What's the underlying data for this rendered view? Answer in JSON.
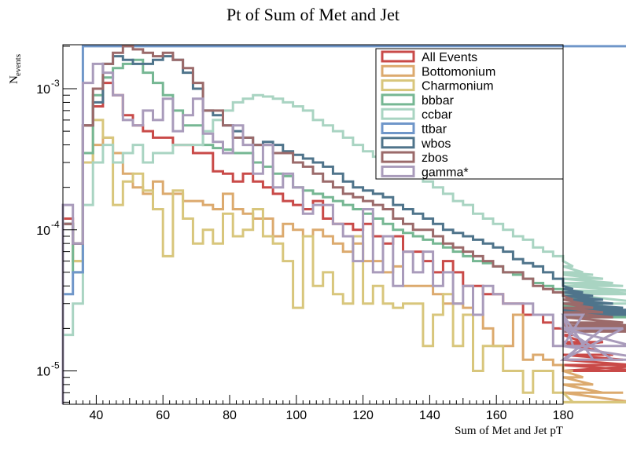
{
  "chart_data": {
    "type": "line",
    "title": "Pt of Sum of Met and Jet",
    "xlabel": "Sum of Met and Jet pT",
    "ylabel_main": "N",
    "ylabel_sub": "events",
    "xlim": [
      30,
      180
    ],
    "ylim": [
      5.8e-06,
      0.00205
    ],
    "yscale": "log",
    "x_ticks": [
      40,
      60,
      80,
      100,
      120,
      140,
      160,
      180
    ],
    "y_ticks": [
      {
        "value": 0.001,
        "base": "10",
        "exp": "-3"
      },
      {
        "value": 0.0001,
        "base": "10",
        "exp": "-4"
      },
      {
        "value": 1e-05,
        "base": "10",
        "exp": "-5"
      }
    ],
    "bin_edges_start": 30,
    "bin_width": 3,
    "grid": false,
    "legend_position": "top-right",
    "series": [
      {
        "name": "All Events",
        "color": "#c94a48",
        "values": [
          0.00012,
          8e-05,
          0.00055,
          0.00075,
          0.0011,
          0.0009,
          0.00065,
          0.00055,
          0.0005,
          0.00045,
          0.00045,
          0.0004,
          0.0004,
          0.00035,
          0.00035,
          0.00026,
          0.00025,
          0.00022,
          0.00025,
          0.00022,
          0.0002,
          0.00018,
          0.00016,
          0.00015,
          0.00014,
          0.00016,
          0.00012,
          0.00011,
          0.00011,
          0.0001,
          0.00011,
          9e-05,
          8e-05,
          9e-05,
          7e-05,
          7e-05,
          6e-05,
          5e-05,
          6e-05,
          5e-05,
          4e-05,
          4e-05,
          3.5e-05,
          3.5e-05,
          3e-05,
          3e-05,
          2.5e-05,
          2.5e-05,
          2.2e-05,
          2e-05,
          2.2e-05,
          1.8e-05,
          1.6e-05,
          1.5e-05,
          1.6e-05,
          1.3e-05,
          1.2e-05,
          1.1e-05,
          1e-05,
          1.1e-05
        ]
      },
      {
        "name": "Bottomonium",
        "color": "#dcaa6e",
        "values": [
          0.00011,
          6e-05,
          0.0003,
          0.0004,
          0.00045,
          0.00035,
          0.00025,
          0.0002,
          0.00018,
          0.00022,
          0.00018,
          0.00018,
          0.00016,
          0.00016,
          0.00015,
          0.00014,
          0.00018,
          0.00014,
          0.00013,
          0.00012,
          0.00012,
          9e-05,
          0.00011,
          0.0001,
          9e-05,
          0.0001,
          9e-05,
          8e-05,
          7e-05,
          8e-05,
          6e-05,
          6e-05,
          5e-05,
          5.5e-05,
          4e-05,
          4e-05,
          4e-05,
          3.5e-05,
          3e-05,
          3e-05,
          2.8e-05,
          2.5e-05,
          2e-05,
          1.5e-05,
          1.5e-05,
          2.5e-05,
          1.2e-05,
          1.3e-05,
          1.2e-05,
          1.1e-05,
          1e-05,
          1e-05,
          9e-06,
          8e-06,
          7e-06,
          7e-06,
          7e-06,
          6e-06,
          6e-06,
          6e-06
        ]
      },
      {
        "name": "Charmonium",
        "color": "#d8c67c",
        "values": [
          0.00011,
          6e-05,
          0.0003,
          0.0006,
          0.00045,
          0.00015,
          0.00022,
          0.00025,
          0.00019,
          0.00014,
          6.5e-05,
          0.00019,
          0.00012,
          8e-05,
          0.0001,
          8e-05,
          0.00013,
          9e-05,
          0.0001,
          0.00014,
          9e-05,
          8e-05,
          6e-05,
          2.8e-05,
          9e-05,
          4e-05,
          5e-05,
          3.5e-05,
          3e-05,
          9e-05,
          3e-05,
          4e-05,
          3e-05,
          2.8e-05,
          3e-05,
          3e-05,
          1.5e-05,
          2.5e-05,
          3.5e-05,
          1.5e-05,
          2.5e-05,
          1e-05,
          1.5e-05,
          1.5e-05,
          1e-05,
          1e-05,
          7e-06,
          1e-05,
          1e-05,
          7e-06,
          7e-06,
          6e-06,
          6e-06,
          6e-06,
          6e-06,
          6e-06,
          6e-06,
          6e-06,
          6e-06,
          6e-06
        ]
      },
      {
        "name": "bbbar",
        "color": "#76b793",
        "values": [
          0.00011,
          5e-05,
          0.00035,
          0.0009,
          0.0012,
          0.0014,
          0.0015,
          0.0016,
          0.0013,
          0.0011,
          0.0009,
          0.0007,
          0.00055,
          0.00055,
          0.0004,
          0.00038,
          0.00037,
          0.00035,
          0.00035,
          0.0003,
          0.00028,
          0.00025,
          0.00024,
          0.0002,
          0.00019,
          0.00018,
          0.00017,
          0.00016,
          0.00015,
          0.00014,
          0.00013,
          0.00012,
          0.00011,
          0.0001,
          9.5e-05,
          9e-05,
          8.5e-05,
          8e-05,
          7.5e-05,
          7e-05,
          6.5e-05,
          6e-05,
          5.8e-05,
          5.5e-05,
          5e-05,
          4.8e-05,
          4.5e-05,
          4.2e-05,
          4e-05,
          3.8e-05,
          3.6e-05,
          3.4e-05,
          3.2e-05,
          3e-05,
          2.9e-05,
          2.8e-05,
          2.7e-05,
          2.6e-05,
          2.5e-05,
          2.4e-05
        ]
      },
      {
        "name": "ccbar",
        "color": "#a9d4c2",
        "values": [
          1.8e-05,
          3e-05,
          0.00015,
          0.0003,
          0.0004,
          0.0003,
          0.00035,
          0.0004,
          0.0003,
          0.00035,
          0.00035,
          0.0004,
          0.0004,
          0.0004,
          0.0005,
          0.0006,
          0.0007,
          0.0008,
          0.00085,
          0.0009,
          0.00088,
          0.00085,
          0.0008,
          0.00075,
          0.0007,
          0.0006,
          0.00055,
          0.0005,
          0.00045,
          0.0004,
          0.00036,
          0.00033,
          0.0003,
          0.00028,
          0.00026,
          0.00024,
          0.00022,
          0.0002,
          0.00018,
          0.00016,
          0.00015,
          0.00013,
          0.00012,
          0.00011,
          0.0001,
          9e-05,
          8.5e-05,
          7.5e-05,
          7e-05,
          6.5e-05,
          6e-05,
          5.5e-05,
          5e-05,
          4.8e-05,
          4.5e-05,
          4.2e-05,
          4e-05,
          3.7e-05,
          3.5e-05,
          3e-05
        ]
      },
      {
        "name": "ttbar",
        "color": "#6f96c9",
        "values": [
          3.5e-05,
          5e-05,
          0.002,
          0.002,
          0.002,
          0.002,
          0.002,
          0.002,
          0.002,
          0.002,
          0.002,
          0.002,
          0.002,
          0.002,
          0.002,
          0.002,
          0.002,
          0.002,
          0.002,
          0.002,
          0.002,
          0.002,
          0.002,
          0.002,
          0.002,
          0.002,
          0.002,
          0.002,
          0.002,
          0.002,
          0.002,
          0.002,
          0.002,
          0.002,
          0.002,
          0.002,
          0.002,
          0.002,
          0.002,
          0.002,
          0.002,
          0.002,
          0.002,
          0.002,
          0.002,
          0.002,
          0.002,
          0.002,
          0.002,
          0.002,
          0.002,
          0.002,
          0.002,
          0.002,
          0.002,
          0.002,
          0.002,
          0.002,
          0.002,
          0.002
        ]
      },
      {
        "name": "wbos",
        "color": "#4f748b",
        "values": [
          0.00011,
          8e-05,
          0.00055,
          0.0008,
          0.0015,
          0.0017,
          0.0016,
          0.0015,
          0.0015,
          0.0016,
          0.0017,
          0.0016,
          0.0013,
          0.001,
          0.0007,
          0.00065,
          0.00055,
          0.0005,
          0.00045,
          0.0004,
          0.00042,
          0.0004,
          0.00036,
          0.00034,
          0.00032,
          0.0003,
          0.00028,
          0.00025,
          0.00022,
          0.0002,
          0.00019,
          0.00018,
          0.00017,
          0.00015,
          0.00014,
          0.00013,
          0.00012,
          0.00011,
          0.0001,
          9.5e-05,
          9e-05,
          8.5e-05,
          8e-05,
          7.5e-05,
          7e-05,
          6.2e-05,
          5.8e-05,
          5.5e-05,
          5e-05,
          4.5e-05,
          4e-05,
          3.8e-05,
          3.6e-05,
          3.4e-05,
          3.2e-05,
          3e-05,
          2.8e-05,
          2.7e-05,
          2.6e-05,
          2.5e-05
        ]
      },
      {
        "name": "zbos",
        "color": "#9b6a6a",
        "values": [
          0.00011,
          8e-05,
          0.00055,
          0.001,
          0.0015,
          0.0018,
          0.002,
          0.0019,
          0.0018,
          0.0017,
          0.0018,
          0.0016,
          0.0014,
          0.0011,
          0.0007,
          0.0007,
          0.00055,
          0.00045,
          0.00045,
          0.0004,
          0.0004,
          0.00035,
          0.00035,
          0.0003,
          0.00028,
          0.00025,
          0.00022,
          0.0002,
          0.00018,
          0.00017,
          0.00016,
          0.00015,
          0.00014,
          0.00012,
          0.00011,
          0.0001,
          0.0001,
          9e-05,
          8e-05,
          7.5e-05,
          7e-05,
          6.5e-05,
          6e-05,
          5.5e-05,
          5e-05,
          5e-05,
          4.5e-05,
          4e-05,
          3.8e-05,
          3.6e-05,
          3.4e-05,
          3.2e-05,
          3e-05,
          2.8e-05,
          2.6e-05,
          2.4e-05,
          2.2e-05,
          2.1e-05,
          2e-05,
          1.9e-05
        ]
      },
      {
        "name": "gamma*",
        "color": "#a99bbb",
        "values": [
          0.00015,
          8e-05,
          0.0011,
          0.0015,
          0.0013,
          0.0009,
          0.0006,
          0.00055,
          0.0007,
          0.0006,
          0.00085,
          0.0005,
          0.00065,
          0.00085,
          0.00048,
          0.00042,
          0.00035,
          0.00055,
          0.0004,
          0.00025,
          0.0004,
          0.0002,
          0.00025,
          0.0002,
          0.00013,
          0.00015,
          0.00015,
          0.00011,
          9e-05,
          6e-05,
          0.00014,
          5e-05,
          9e-05,
          4e-05,
          7e-05,
          5e-05,
          7e-05,
          4e-05,
          5e-05,
          3e-05,
          4e-05,
          2.5e-05,
          4e-05,
          3.5e-05,
          3e-05,
          3e-05,
          3e-05,
          2.5e-05,
          2.5e-05,
          1.5e-05,
          2.5e-05,
          1.5e-05,
          2.5e-05,
          1.2e-05,
          2e-05,
          1.2e-05,
          2e-05,
          1.5e-05,
          1.5e-05,
          1.2e-05
        ]
      }
    ]
  }
}
